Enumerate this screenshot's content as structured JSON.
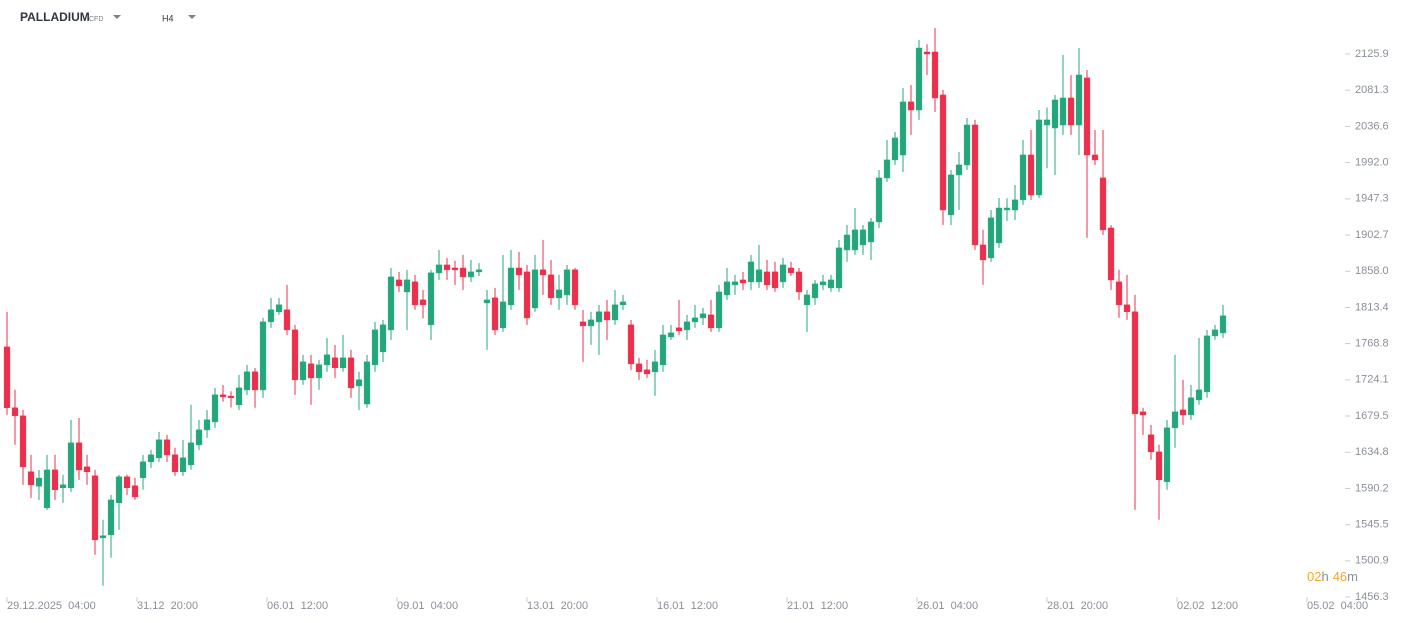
{
  "chart_data": {
    "type": "candlestick",
    "title": "PALLADIUM",
    "instrument_type": "CFD",
    "timeframe": "H4",
    "up_color": "#23a77a",
    "down_color": "#ec2f4b",
    "open": [
      1764.7,
      1689.6,
      1679.7,
      1610.7,
      1593,
      1566.3,
      1613,
      1591,
      1591,
      1646.4,
      1616.8,
      1605.7,
      1529.3,
      1533,
      1572.5,
      1604.5,
      1593.4,
      1603.3,
      1623,
      1627.9,
      1650.1,
      1631.6,
      1610.7,
      1619.3,
      1643.9,
      1662.4,
      1672.3,
      1705.6,
      1704,
      1693.3,
      1711.7,
      1734,
      1711.7,
      1795.6,
      1808,
      1810.4,
      1785.7,
      1724.1,
      1743.8,
      1726.5,
      1742.6,
      1751.2,
      1738.9,
      1751.2,
      1716.7,
      1694.3,
      1742.6,
      1758.6,
      1785.7,
      1847.3,
      1832.5,
      1844.9,
      1822.7,
      1791.9,
      1856,
      1865.8,
      1862,
      1862,
      1851,
      1857.2,
      1819,
      1825.2,
      1788.2,
      1816.6,
      1862,
      1857.2,
      1812.8,
      1859.7,
      1853.5,
      1825.2,
      1828.8,
      1859.7,
      1795.6,
      1790.6,
      1795.6,
      1808,
      1798,
      1816.6,
      1791.9,
      1743.8,
      1736.4,
      1734,
      1742.6,
      1777,
      1788.2,
      1785.7,
      1795.6,
      1800.5,
      1804.2,
      1788.2,
      1828.8,
      1841.2,
      1847.3,
      1844.9,
      1844.9,
      1857.2,
      1857.2,
      1844.9,
      1862,
      1857.2,
      1816.6,
      1825.2,
      1841.2,
      1837.5,
      1837.5,
      1884.3,
      1884.3,
      1890.5,
      1894.2,
      1918.8,
      1973.1,
      1995.3,
      2001.4,
      2066.8,
      2056.9,
      2128.4,
      2128.4,
      2075.4,
      1927.5,
      1976.8,
      1989.1,
      2038.4,
      1890.5,
      1874.5,
      1893,
      1933.6,
      1933.6,
      1946,
      2001.4,
      1952.1,
      2038.4,
      2034.7,
      2038.4,
      2071.7,
      2038.4,
      2096.4,
      2001.4,
      1973.1,
      1911.4,
      1844.9,
      1816.6,
      1808,
      1684.6,
      1656.3,
      1635.3,
      1598.4,
      1664.9,
      1687,
      1681,
      1699.4,
      1709.3,
      1778.3,
      1782
    ],
    "high": [
      1807.9,
      1711.7,
      1687,
      1631.6,
      1613,
      1631.6,
      1631.6,
      1607,
      1674.8,
      1677,
      1631.6,
      1613,
      1551.5,
      1582.3,
      1607,
      1607,
      1603.3,
      1631.6,
      1637.8,
      1660,
      1656.3,
      1640.3,
      1650.1,
      1693.3,
      1674.8,
      1687,
      1714.2,
      1717.9,
      1710,
      1730.2,
      1742.6,
      1738.9,
      1800.5,
      1825.2,
      1825.2,
      1841.2,
      1791.9,
      1754.9,
      1754.9,
      1748.7,
      1775.8,
      1767.2,
      1779.5,
      1761,
      1734,
      1754.9,
      1795.6,
      1798,
      1862,
      1857.2,
      1859.7,
      1853.5,
      1835,
      1859.7,
      1884.3,
      1874.5,
      1871,
      1878.2,
      1872,
      1868,
      1835,
      1837.5,
      1878.2,
      1884.3,
      1881.9,
      1865.8,
      1878.2,
      1896.7,
      1872,
      1853.5,
      1865.8,
      1862,
      1810.4,
      1808,
      1816.6,
      1822.7,
      1835,
      1828.8,
      1798,
      1751.2,
      1748.7,
      1761,
      1791.9,
      1791.9,
      1822.7,
      1804.2,
      1816.6,
      1812.8,
      1822.7,
      1841.2,
      1862,
      1853.5,
      1857.2,
      1878.2,
      1890.5,
      1872,
      1869.5,
      1874.5,
      1869.5,
      1862,
      1835,
      1847.3,
      1853.5,
      1853.5,
      1896.7,
      1915.1,
      1936,
      1915.1,
      1923.8,
      1982.9,
      2019.9,
      2029.8,
      2084,
      2087.7,
      2143.2,
      2138,
      2158,
      2081.6,
      1982.9,
      2005.1,
      2047,
      2044.6,
      1909,
      1933.6,
      1948.4,
      1948,
      1964.4,
      2019.9,
      2032.2,
      2056.9,
      2060,
      2075.4,
      2124.7,
      2100,
      2133.3,
      2106.2,
      2032.2,
      2032.2,
      1915.1,
      1859.7,
      1853.5,
      1828.8,
      1689.6,
      1668.6,
      1644,
      1674.8,
      1754.9,
      1724.1,
      1717.9,
      1775.8,
      1785.7,
      1791.9,
      1816.6
    ],
    "low": [
      1681,
      1644,
      1594.6,
      1578.6,
      1576,
      1563.8,
      1576,
      1572.5,
      1586,
      1600.8,
      1594.6,
      1508.4,
      1470.1,
      1504.7,
      1539,
      1582.3,
      1576,
      1588.5,
      1615.6,
      1623,
      1623,
      1605.7,
      1605.7,
      1613,
      1637.8,
      1652.6,
      1664.9,
      1697,
      1690,
      1687,
      1705.6,
      1689.6,
      1701.9,
      1788.2,
      1804.2,
      1779.5,
      1705.6,
      1717.9,
      1693.3,
      1711.7,
      1734,
      1726.5,
      1734,
      1701.9,
      1687,
      1689.6,
      1734,
      1746.3,
      1773.4,
      1832.5,
      1785.7,
      1810.4,
      1800,
      1773.4,
      1847.3,
      1847.3,
      1841,
      1835,
      1844.9,
      1852,
      1761,
      1779.5,
      1783.3,
      1810.4,
      1835,
      1791.9,
      1808,
      1828.8,
      1816.6,
      1810.4,
      1816.6,
      1810.4,
      1746.3,
      1767.2,
      1754.9,
      1773.4,
      1791.9,
      1810.4,
      1736.4,
      1724.1,
      1726.5,
      1704.4,
      1734,
      1773.4,
      1779.5,
      1773.4,
      1788.2,
      1791.9,
      1783.3,
      1783.3,
      1822.7,
      1828.8,
      1835,
      1835,
      1837.5,
      1835,
      1832.5,
      1837.5,
      1852.3,
      1822.7,
      1783.3,
      1816.6,
      1835,
      1832.5,
      1832.5,
      1869.5,
      1878.2,
      1878.2,
      1872,
      1911.4,
      1968.2,
      1989.1,
      1980.5,
      2026.1,
      2044.6,
      2100,
      2054.4,
      1915.1,
      1915.1,
      1933.6,
      1982.9,
      1884.3,
      1841.2,
      1869.5,
      1886.8,
      1920,
      1921.3,
      1939.8,
      1946,
      1948.4,
      1985,
      1976.8,
      2026.1,
      2026.1,
      2001.4,
      1899.1,
      1989.1,
      1902.7,
      1835,
      1800.5,
      1798,
      1563.8,
      1656.3,
      1625.5,
      1551.5,
      1588.5,
      1640.3,
      1668.6,
      1674.8,
      1693.3,
      1701.9,
      1773.4,
      1775.8
    ],
    "close": [
      1689.6,
      1679.7,
      1616.8,
      1594.6,
      1603,
      1613,
      1588.5,
      1594.6,
      1646.4,
      1613,
      1610.7,
      1526.8,
      1531.8,
      1576,
      1604.5,
      1591,
      1579.8,
      1623,
      1631.6,
      1650.1,
      1631.6,
      1610.7,
      1627.9,
      1646.4,
      1662.4,
      1674.8,
      1705.6,
      1703.1,
      1702,
      1714.2,
      1734,
      1711.7,
      1795.6,
      1810.4,
      1816.6,
      1785.7,
      1724.1,
      1746.3,
      1726.5,
      1742.6,
      1754.9,
      1738.9,
      1751.2,
      1714.2,
      1724.1,
      1746.3,
      1785.7,
      1791.9,
      1851,
      1840,
      1847.3,
      1816.6,
      1816.6,
      1856,
      1865.8,
      1859.7,
      1859.7,
      1851,
      1857.2,
      1859.7,
      1822.7,
      1785.7,
      1820.2,
      1862,
      1853.5,
      1800.5,
      1859.7,
      1853.5,
      1825.2,
      1835,
      1859.7,
      1816.6,
      1790.6,
      1798,
      1808,
      1798,
      1816.6,
      1820.2,
      1743.8,
      1734,
      1731.5,
      1746.3,
      1779.5,
      1782,
      1784.5,
      1795.6,
      1800.5,
      1805.5,
      1788.2,
      1832.5,
      1844.9,
      1844.9,
      1843.6,
      1869.5,
      1859.7,
      1841.2,
      1837.5,
      1865.8,
      1856,
      1832.5,
      1828.8,
      1842.4,
      1844.9,
      1847.3,
      1886.8,
      1902.7,
      1909,
      1909,
      1918.8,
      1973.1,
      1995.3,
      2022.4,
      2066.8,
      2056.9,
      2133.3,
      2125.9,
      2071.7,
      1933.6,
      1976.8,
      1989.1,
      2038.4,
      1890.5,
      1872,
      1923.8,
      1936,
      1936,
      1946,
      2001.4,
      1952.1,
      2044.6,
      2044.6,
      2069.2,
      2071.7,
      2038.4,
      2100,
      2001.4,
      1995.3,
      1909,
      1847.3,
      1816.6,
      1808,
      1682.2,
      1681,
      1635.3,
      1600.8,
      1664.9,
      1684.6,
      1681,
      1701.9,
      1711.7,
      1778.3,
      1785.7,
      1803
    ],
    "xlim": [
      -0.875,
      167.25
    ],
    "xticks": [
      {
        "value": 0,
        "label": "29.12.2025  04:00"
      },
      {
        "value": 16.25,
        "label": "31.12  20:00"
      },
      {
        "value": 32.5,
        "label": "06.01  12:00"
      },
      {
        "value": 48.75,
        "label": "09.01  04:00"
      },
      {
        "value": 65,
        "label": "13.01  20:00"
      },
      {
        "value": 81.25,
        "label": "16.01  12:00"
      },
      {
        "value": 97.5,
        "label": "21.01  12:00"
      },
      {
        "value": 113.75,
        "label": "26.01  04:00"
      },
      {
        "value": 130,
        "label": "28.01  20:00"
      },
      {
        "value": 146.25,
        "label": "02.02  12:00"
      },
      {
        "value": 162.5,
        "label": "05.02  04:00"
      }
    ],
    "ylim": [
      1456.3,
      2192.5
    ],
    "yticks": [
      2125.9,
      2081.3,
      2036.6,
      {
        "value": 1992,
        "label": "1992.0"
      },
      1947.3,
      1902.7,
      {
        "value": 1858,
        "label": "1858.0"
      },
      1813.4,
      1768.8,
      1724.1,
      1679.5,
      1634.8,
      1590.2,
      1545.5,
      1500.9,
      1456.3
    ],
    "countdown": {
      "hours": "02",
      "hours_unit": "h",
      "minutes": "46",
      "minutes_unit": "m"
    }
  }
}
